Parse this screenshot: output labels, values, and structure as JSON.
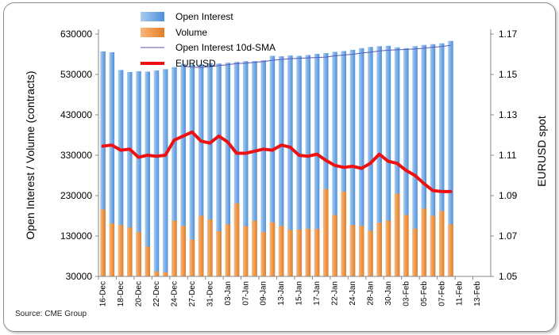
{
  "source_text": "Source: CME Group",
  "colors": {
    "open_interest": "#7aaee6",
    "volume": "#f19a4c",
    "sma": "#5a5ab8",
    "eurusd": "#ee1111"
  },
  "chart_data": {
    "type": "bar",
    "title": "",
    "ylabel_left": "Open Interest / Volume (contracts)",
    "ylabel_right": "EURUSD spot",
    "y_left_range": [
      30000,
      630000
    ],
    "y_left_ticks": [
      "30000",
      "130000",
      "230000",
      "330000",
      "430000",
      "530000",
      "630000"
    ],
    "y_left_tick_values": [
      30000,
      130000,
      230000,
      330000,
      430000,
      530000,
      630000
    ],
    "y_right_range": [
      1.05,
      1.17
    ],
    "y_right_ticks": [
      "1.05",
      "1.07",
      "1.09",
      "1.11",
      "1.13",
      "1.15",
      "1.17"
    ],
    "y_right_tick_values": [
      1.05,
      1.07,
      1.09,
      1.11,
      1.13,
      1.15,
      1.17
    ],
    "x_labels": [
      "16-Dec",
      "18-Dec",
      "20-Dec",
      "22-Dec",
      "24-Dec",
      "27-Dec",
      "31-Dec",
      "03-Jan",
      "07-Jan",
      "09-Jan",
      "13-Jan",
      "15-Jan",
      "17-Jan",
      "22-Jan",
      "24-Jan",
      "28-Jan",
      "30-Jan",
      "03-Feb",
      "05-Feb",
      "07-Feb",
      "11-Feb",
      "13-Feb"
    ],
    "n_slots": 44,
    "n_data": 40,
    "legend_position": "top",
    "legend": [
      "Open Interest",
      "Volume",
      "Open Interest 10d-SMA",
      "EURUSD"
    ],
    "grid": false,
    "series": [
      {
        "name": "Open Interest",
        "kind": "bar",
        "values": [
          587000,
          585000,
          541000,
          536000,
          538000,
          537000,
          540000,
          543000,
          548000,
          556000,
          554000,
          555000,
          558000,
          557000,
          559000,
          561000,
          563000,
          563000,
          565000,
          576000,
          575000,
          577000,
          576000,
          578000,
          581000,
          583000,
          586000,
          588000,
          591000,
          595000,
          598000,
          600000,
          601000,
          597000,
          595000,
          600000,
          603000,
          605000,
          607000,
          613000
        ]
      },
      {
        "name": "Volume",
        "kind": "bar",
        "values": [
          196000,
          161000,
          157000,
          151000,
          140000,
          104000,
          42000,
          40000,
          168000,
          155000,
          121000,
          180000,
          171000,
          142000,
          159000,
          211000,
          154000,
          168000,
          140000,
          164000,
          155000,
          145000,
          146000,
          148000,
          147000,
          246000,
          182000,
          240000,
          157000,
          155000,
          143000,
          163000,
          168000,
          235000,
          182000,
          148000,
          198000,
          180000,
          192000,
          159000
        ]
      },
      {
        "name": "Open Interest 10d-SMA",
        "kind": "line",
        "values": [
          null,
          null,
          null,
          null,
          null,
          null,
          null,
          null,
          null,
          550000,
          548000,
          547000,
          549000,
          552000,
          554000,
          557000,
          558000,
          560000,
          562000,
          565000,
          567000,
          569000,
          570000,
          571000,
          572000,
          573000,
          576000,
          578000,
          580000,
          583000,
          585000,
          588000,
          590000,
          591000,
          592000,
          593000,
          595000,
          597000,
          599000,
          602000
        ]
      },
      {
        "name": "EURUSD",
        "kind": "line",
        "axis": "right",
        "values": [
          1.1145,
          1.115,
          1.1125,
          1.113,
          1.109,
          1.11,
          1.1095,
          1.11,
          1.1175,
          1.1195,
          1.1215,
          1.117,
          1.116,
          1.1195,
          1.1165,
          1.111,
          1.111,
          1.112,
          1.113,
          1.1125,
          1.115,
          1.114,
          1.11,
          1.1095,
          1.1105,
          1.1075,
          1.105,
          1.104,
          1.1045,
          1.1035,
          1.106,
          1.1105,
          1.107,
          1.106,
          1.1025,
          1.1,
          1.096,
          1.0925,
          1.092,
          1.092
        ]
      }
    ]
  }
}
